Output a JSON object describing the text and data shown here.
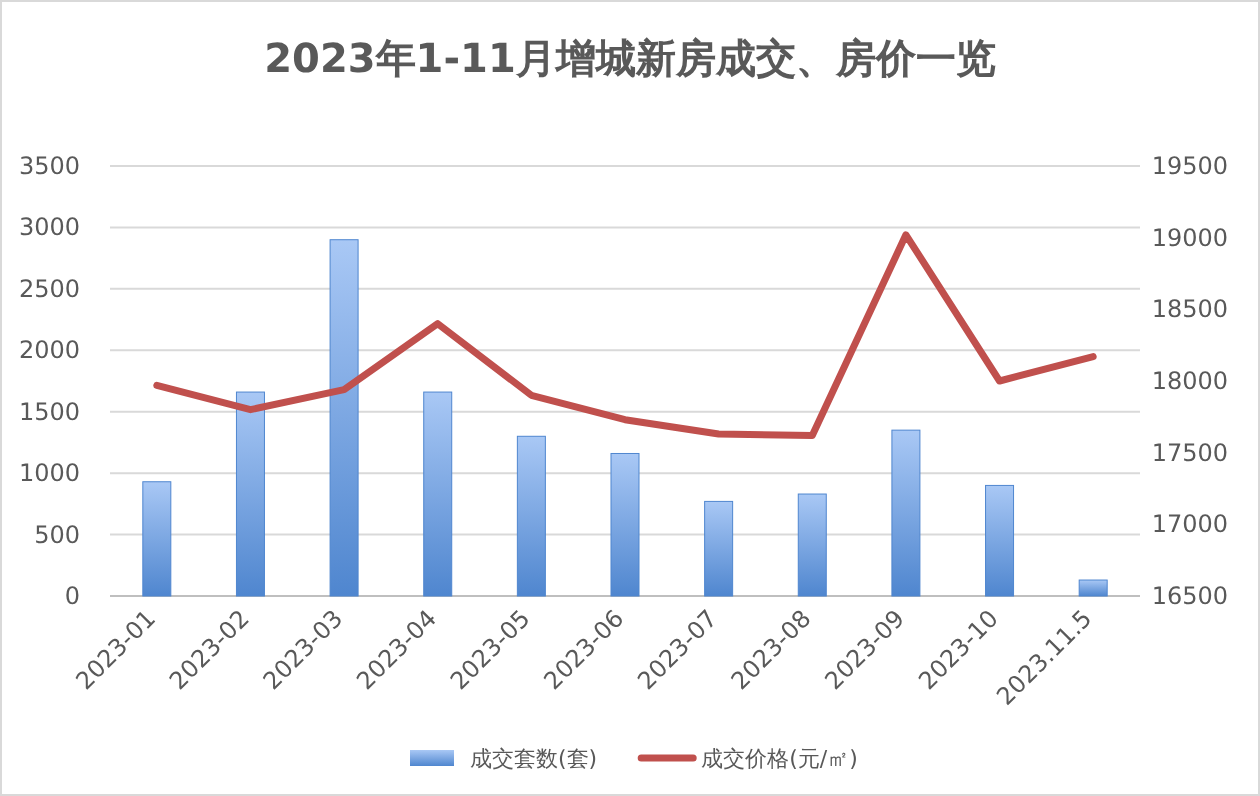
{
  "chart_data": {
    "type": "bar",
    "title": "2023年1-11月增城新房成交、房价一览",
    "categories": [
      "2023-01",
      "2023-02",
      "2023-03",
      "2023-04",
      "2023-05",
      "2023-06",
      "2023-07",
      "2023-08",
      "2023-09",
      "2023-10",
      "2023.11.5"
    ],
    "series": [
      {
        "name": "成交套数(套)",
        "color": "#4f86cf",
        "values": [
          930,
          1660,
          2900,
          1660,
          1300,
          1160,
          770,
          830,
          1350,
          900,
          130
        ]
      },
      {
        "name": "成交价格(元/㎡)",
        "type": "line",
        "axis": "y2",
        "color": "#c0504d",
        "values": [
          17970,
          17800,
          17940,
          18400,
          17900,
          17730,
          17630,
          17620,
          19020,
          18000,
          18170
        ]
      }
    ],
    "ylim": [
      0,
      3500
    ],
    "yticks": [
      0,
      500,
      1000,
      1500,
      2000,
      2500,
      3000,
      3500
    ],
    "y2lim": [
      16500,
      19500
    ],
    "y2ticks": [
      16500,
      17000,
      17500,
      18000,
      18500,
      19000,
      19500
    ],
    "grid": "y",
    "legend": "bottom",
    "marker": "none"
  }
}
